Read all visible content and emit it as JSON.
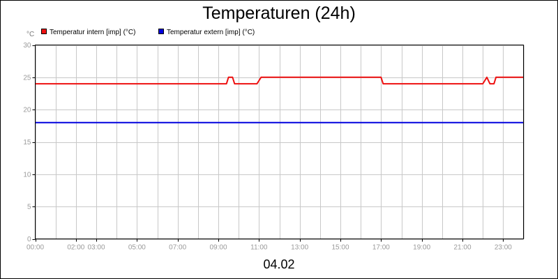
{
  "chart_data": {
    "type": "line",
    "title": "Temperaturen (24h)",
    "y_unit": "°C",
    "date_label": "04.02",
    "ylim": [
      0,
      30
    ],
    "y_ticks": [
      0,
      5,
      10,
      15,
      20,
      25,
      30
    ],
    "xlim": [
      0,
      24
    ],
    "x_ticks": [
      {
        "v": 0,
        "label": "00:00"
      },
      {
        "v": 2,
        "label": "02:00"
      },
      {
        "v": 3,
        "label": "03:00"
      },
      {
        "v": 5,
        "label": "05:00"
      },
      {
        "v": 7,
        "label": "07:00"
      },
      {
        "v": 9,
        "label": "09:00"
      },
      {
        "v": 11,
        "label": "11:00"
      },
      {
        "v": 13,
        "label": "13:00"
      },
      {
        "v": 15,
        "label": "15:00"
      },
      {
        "v": 17,
        "label": "17:00"
      },
      {
        "v": 19,
        "label": "19:00"
      },
      {
        "v": 21,
        "label": "21:00"
      },
      {
        "v": 23,
        "label": "23:00"
      }
    ],
    "x_gridlines": [
      0,
      1,
      2,
      3,
      4,
      5,
      6,
      7,
      8,
      9,
      10,
      11,
      12,
      13,
      14,
      15,
      16,
      17,
      18,
      19,
      20,
      21,
      22,
      23,
      24
    ],
    "legend_placement": "top-left",
    "grid": true,
    "series": [
      {
        "name": "Temperatur intern [imp] (°C)",
        "color": "#ee1111",
        "points": [
          [
            0,
            24
          ],
          [
            9.4,
            24
          ],
          [
            9.5,
            25
          ],
          [
            9.7,
            25
          ],
          [
            9.8,
            24
          ],
          [
            10.9,
            24
          ],
          [
            11.1,
            25
          ],
          [
            17.0,
            25
          ],
          [
            17.1,
            24
          ],
          [
            22.0,
            24
          ],
          [
            22.2,
            25
          ],
          [
            22.35,
            24
          ],
          [
            22.55,
            24
          ],
          [
            22.65,
            25
          ],
          [
            24,
            25
          ]
        ]
      },
      {
        "name": "Temperatur extern [imp] (°C)",
        "color": "#0000dd",
        "points": [
          [
            0,
            18
          ],
          [
            24,
            18
          ]
        ]
      }
    ]
  }
}
